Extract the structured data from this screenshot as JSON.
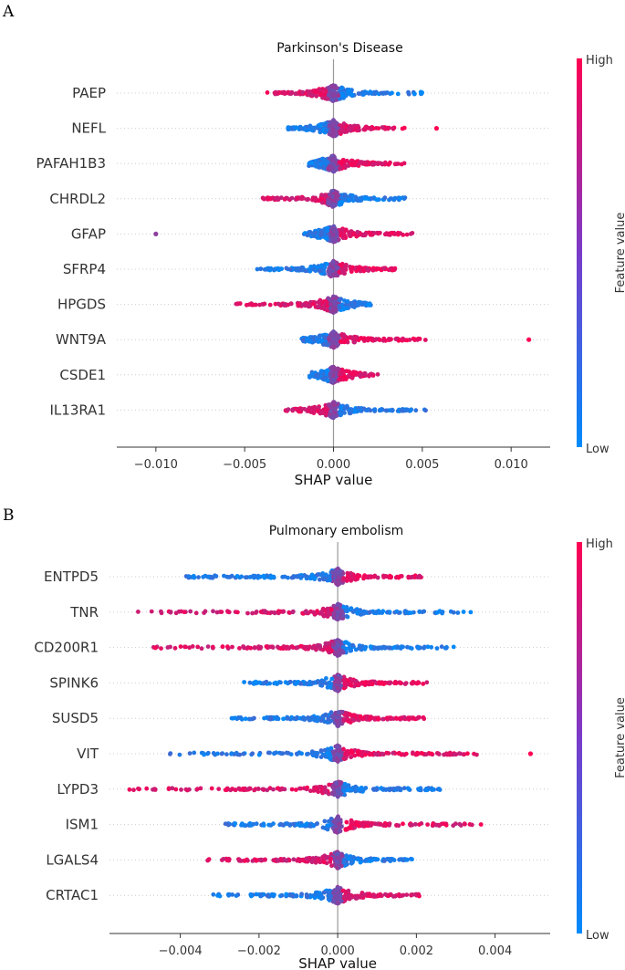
{
  "colors": {
    "high": "#ff0052",
    "low": "#008bfb",
    "zero_line": "#999999",
    "row_line": "#cccccc",
    "axis": "#333333"
  },
  "chart_data": [
    {
      "type": "scatter",
      "subtype": "shap-beeswarm",
      "panel_label": "A",
      "title": "Parkinson's Disease",
      "xlabel": "SHAP value",
      "xlim": [
        -0.0122,
        0.0122
      ],
      "xticks": [
        -0.01,
        -0.005,
        0.0,
        0.005,
        0.01
      ],
      "xtick_labels": [
        "−0.010",
        "−0.005",
        "0.000",
        "0.005",
        "0.010"
      ],
      "colorbar": {
        "high": "High",
        "low": "Low",
        "label": "Feature value"
      },
      "features": [
        {
          "name": "PAEP",
          "neg_min": -0.0038,
          "pos_max": 0.005,
          "left": "high",
          "outliers": []
        },
        {
          "name": "NEFL",
          "neg_min": -0.0027,
          "pos_max": 0.004,
          "left": "low",
          "outliers": [
            [
              0.0058,
              "high"
            ]
          ]
        },
        {
          "name": "PAFAH1B3",
          "neg_min": -0.0014,
          "pos_max": 0.004,
          "left": "low",
          "outliers": []
        },
        {
          "name": "CHRDL2",
          "neg_min": -0.0042,
          "pos_max": 0.0042,
          "left": "high",
          "outliers": []
        },
        {
          "name": "GFAP",
          "neg_min": -0.0018,
          "pos_max": 0.0045,
          "left": "low",
          "outliers": [
            [
              -0.01,
              "mid"
            ]
          ]
        },
        {
          "name": "SFRP4",
          "neg_min": -0.0043,
          "pos_max": 0.0035,
          "left": "low",
          "outliers": []
        },
        {
          "name": "HPGDS",
          "neg_min": -0.0055,
          "pos_max": 0.0022,
          "left": "high",
          "outliers": []
        },
        {
          "name": "WNT9A",
          "neg_min": -0.0018,
          "pos_max": 0.0052,
          "left": "low",
          "outliers": [
            [
              0.011,
              "high"
            ]
          ]
        },
        {
          "name": "CSDE1",
          "neg_min": -0.0014,
          "pos_max": 0.0025,
          "left": "low",
          "outliers": []
        },
        {
          "name": "IL13RA1",
          "neg_min": -0.0027,
          "pos_max": 0.0053,
          "left": "high",
          "outliers": []
        }
      ]
    },
    {
      "type": "scatter",
      "subtype": "shap-beeswarm",
      "panel_label": "B",
      "title": "Pulmonary embolism",
      "xlabel": "SHAP value",
      "xlim": [
        -0.0058,
        0.0054
      ],
      "xticks": [
        -0.004,
        -0.002,
        0.0,
        0.002,
        0.004
      ],
      "xtick_labels": [
        "−0.004",
        "−0.002",
        "0.000",
        "0.002",
        "0.004"
      ],
      "colorbar": {
        "high": "High",
        "low": "Low",
        "label": "Feature value"
      },
      "features": [
        {
          "name": "ENTPD5",
          "neg_min": -0.0039,
          "pos_max": 0.0022,
          "left": "low",
          "outliers": []
        },
        {
          "name": "TNR",
          "neg_min": -0.0051,
          "pos_max": 0.0034,
          "left": "high",
          "outliers": []
        },
        {
          "name": "CD200R1",
          "neg_min": -0.0047,
          "pos_max": 0.0031,
          "left": "high",
          "outliers": []
        },
        {
          "name": "SPINK6",
          "neg_min": -0.0024,
          "pos_max": 0.0023,
          "left": "low",
          "outliers": []
        },
        {
          "name": "SUSD5",
          "neg_min": -0.0027,
          "pos_max": 0.0022,
          "left": "low",
          "outliers": []
        },
        {
          "name": "VIT",
          "neg_min": -0.0043,
          "pos_max": 0.0036,
          "left": "low",
          "outliers": [
            [
              0.0049,
              "high"
            ]
          ]
        },
        {
          "name": "LYPD3",
          "neg_min": -0.0053,
          "pos_max": 0.0027,
          "left": "high",
          "outliers": []
        },
        {
          "name": "ISM1",
          "neg_min": -0.0029,
          "pos_max": 0.0039,
          "left": "low",
          "outliers": []
        },
        {
          "name": "LGALS4",
          "neg_min": -0.0034,
          "pos_max": 0.0019,
          "left": "high",
          "outliers": []
        },
        {
          "name": "CRTAC1",
          "neg_min": -0.0032,
          "pos_max": 0.0021,
          "left": "low",
          "outliers": []
        }
      ]
    }
  ]
}
